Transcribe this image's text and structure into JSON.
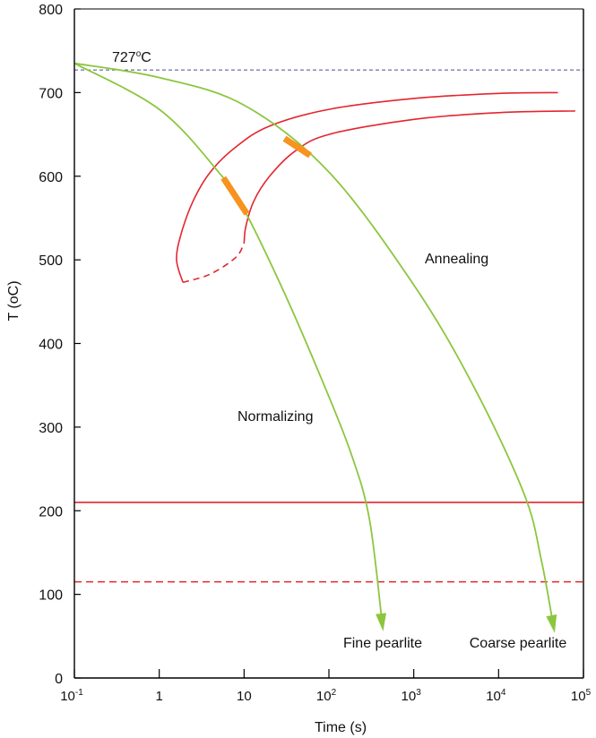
{
  "chart_data": {
    "type": "line",
    "title": "",
    "xlabel": "Time (s)",
    "ylabel": "T (oC)",
    "x_scale": "log",
    "xlim": [
      0.1,
      100000
    ],
    "ylim": [
      0,
      800
    ],
    "grid": false,
    "y_ticks": [
      {
        "value": 0,
        "label": "0"
      },
      {
        "value": 100,
        "label": "100"
      },
      {
        "value": 200,
        "label": "200"
      },
      {
        "value": 300,
        "label": "300"
      },
      {
        "value": 400,
        "label": "400"
      },
      {
        "value": 500,
        "label": "500"
      },
      {
        "value": 600,
        "label": "600"
      },
      {
        "value": 700,
        "label": "700"
      },
      {
        "value": 800,
        "label": "800"
      }
    ],
    "x_ticks": [
      {
        "value": 0.1,
        "base": "10",
        "exp": "-1"
      },
      {
        "value": 1,
        "base": "1",
        "exp": ""
      },
      {
        "value": 10,
        "base": "10",
        "exp": ""
      },
      {
        "value": 100,
        "base": "10",
        "exp": "2"
      },
      {
        "value": 1000,
        "base": "10",
        "exp": "3"
      },
      {
        "value": 10000,
        "base": "10",
        "exp": "4"
      },
      {
        "value": 100000,
        "base": "10",
        "exp": "5"
      }
    ],
    "eutectoid": {
      "temperature": 727,
      "label_value": "727",
      "label_unit": "C",
      "label_sup": "o"
    },
    "transformation_curves": [
      {
        "name": "start",
        "points": [
          [
            1.9,
            473
          ],
          [
            1.6,
            500
          ],
          [
            1.8,
            530
          ],
          [
            2.5,
            570
          ],
          [
            4,
            605
          ],
          [
            8,
            635
          ],
          [
            20,
            660
          ],
          [
            100,
            680
          ],
          [
            1000,
            693
          ],
          [
            10000,
            699
          ],
          [
            50000,
            700
          ]
        ],
        "dashed_tail": [
          [
            1.9,
            473
          ],
          [
            4,
            483
          ],
          [
            8,
            503
          ],
          [
            10,
            520
          ]
        ]
      },
      {
        "name": "finish",
        "points": [
          [
            10,
            520
          ],
          [
            10.5,
            540
          ],
          [
            13,
            570
          ],
          [
            20,
            600
          ],
          [
            40,
            630
          ],
          [
            100,
            650
          ],
          [
            1000,
            668
          ],
          [
            10000,
            676
          ],
          [
            80000,
            678
          ]
        ]
      }
    ],
    "ms_line": {
      "temperature": 210
    },
    "mf_line": {
      "temperature": 115
    },
    "cooling_curves": [
      {
        "name": "Normalizing",
        "label": "Normalizing",
        "end_label": "Fine pearlite",
        "points": [
          [
            0.1,
            735
          ],
          [
            1,
            680
          ],
          [
            5,
            605
          ],
          [
            10,
            560
          ],
          [
            30,
            460
          ],
          [
            80,
            360
          ],
          [
            180,
            270
          ],
          [
            300,
            190
          ],
          [
            430,
            60
          ]
        ],
        "transform_segment": [
          [
            5.7,
            598
          ],
          [
            10.8,
            555
          ]
        ]
      },
      {
        "name": "Annealing",
        "label": "Annealing",
        "end_label": "Coarse pearlite",
        "points": [
          [
            0.1,
            735
          ],
          [
            1,
            718
          ],
          [
            10,
            685
          ],
          [
            100,
            605
          ],
          [
            1000,
            470
          ],
          [
            5000,
            350
          ],
          [
            20000,
            220
          ],
          [
            32000,
            140
          ],
          [
            45000,
            58
          ]
        ],
        "transform_segment": [
          [
            30,
            645
          ],
          [
            60,
            625
          ]
        ]
      }
    ],
    "colors": {
      "cooling": "#8cc63f",
      "transform": "#e3262e",
      "segment": "#f7931e",
      "eutectoid": "#4a4f8c",
      "axis": "#000000"
    }
  }
}
